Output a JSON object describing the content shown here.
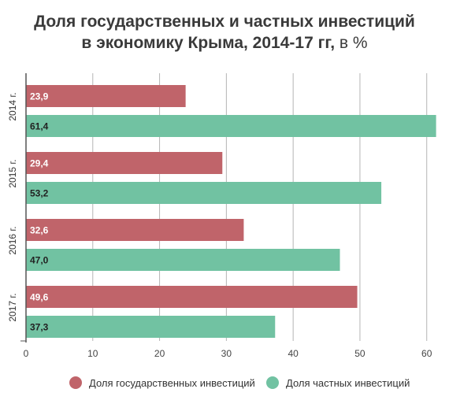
{
  "title": {
    "line1": "Доля государственных и частных инвестиций",
    "line2": "в экономику Крыма, 2014-17 гг,",
    "unit": "в %"
  },
  "colors": {
    "government": "#c0646a",
    "private": "#71c2a2",
    "grid": "#b4b4b4",
    "axis": "#555555"
  },
  "chart_data": {
    "type": "bar",
    "orientation": "horizontal",
    "categories": [
      "2014 г.",
      "2015 г.",
      "2016 г.",
      "2017 г."
    ],
    "series": [
      {
        "name": "Доля государственных инвестиций",
        "values": [
          23.9,
          29.4,
          32.6,
          49.6
        ],
        "labels": [
          "23,9",
          "29,4",
          "32,6",
          "49,6"
        ]
      },
      {
        "name": "Доля частных инвестиций",
        "values": [
          61.4,
          53.2,
          47.0,
          37.3
        ],
        "labels": [
          "61,4",
          "53,2",
          "47,0",
          "37,3"
        ]
      }
    ],
    "xlim": [
      0,
      62
    ],
    "xticks": [
      0,
      10,
      20,
      30,
      40,
      50,
      60
    ],
    "xtick_labels": [
      "0",
      "10",
      "20",
      "30",
      "40",
      "50",
      "60"
    ],
    "grid": true,
    "legend_position": "bottom"
  }
}
